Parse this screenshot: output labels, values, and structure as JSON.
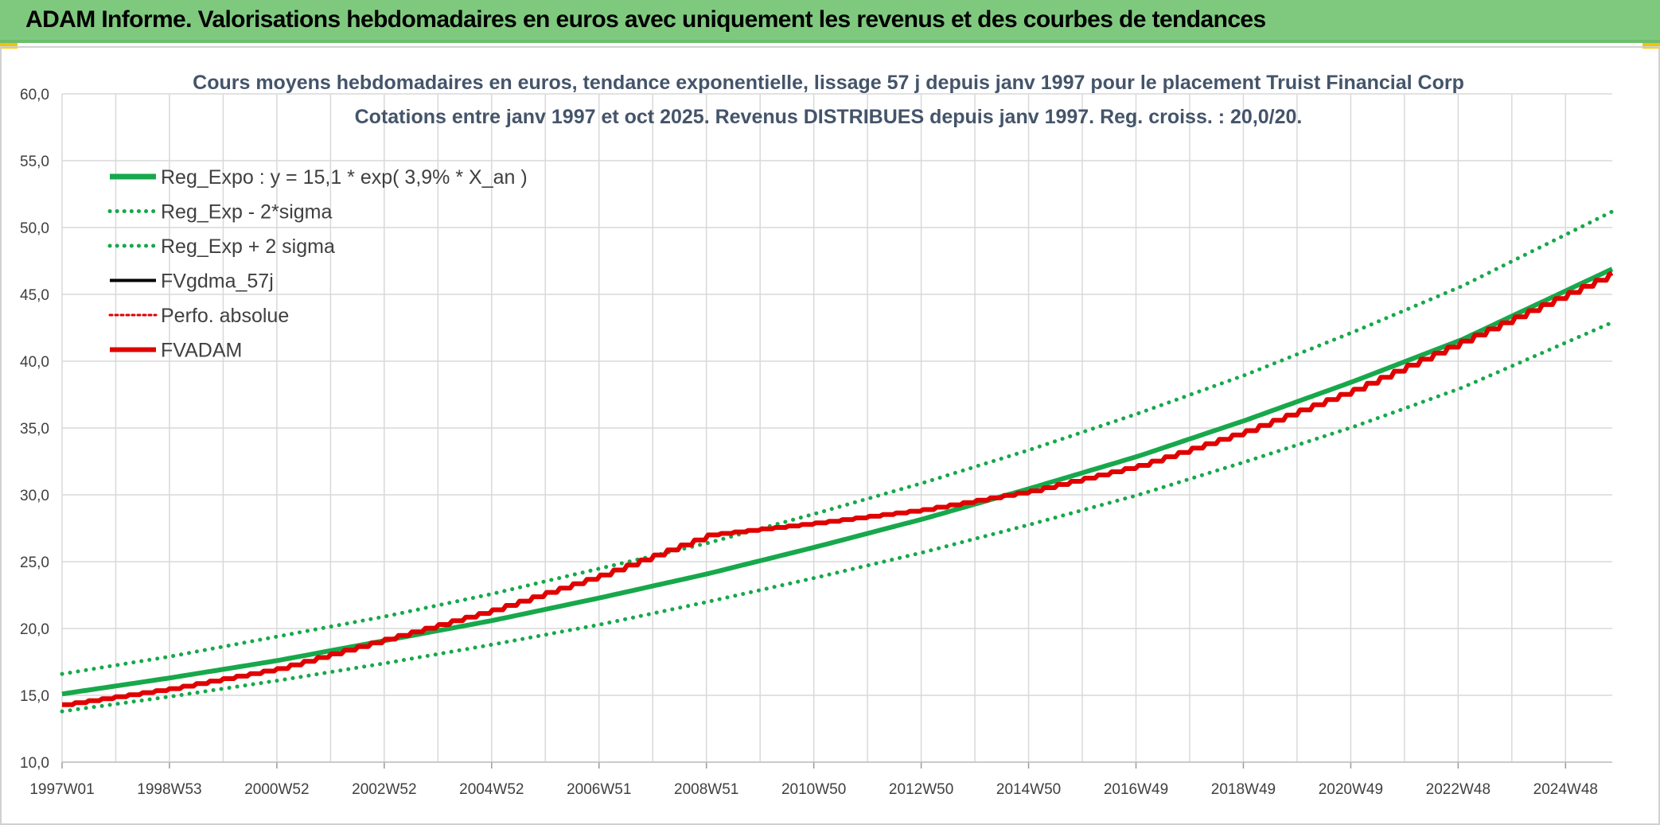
{
  "header": {
    "title": "ADAM Informe. Valorisations hebdomadaires en euros avec uniquement les revenus et des courbes de tendances"
  },
  "colors": {
    "reg_expo": "#17a84b",
    "sigma": "#17a84b",
    "fvgdma": "#000000",
    "perfo": "#e00000",
    "fvadam": "#e00000",
    "grid": "#d9d9d9"
  },
  "chart_data": {
    "type": "line",
    "title": "Cours moyens hebdomadaires en euros, tendance exponentielle, lissage 57 j depuis janv 1997 pour le placement Truist Financial Corp",
    "subtitle": "Cotations entre janv 1997 et oct 2025. Revenus DISTRIBUES depuis janv 1997. Reg. croiss. : 20,0/20.",
    "xlabel": "",
    "ylabel": "",
    "ylim": [
      10,
      60
    ],
    "xlim": [
      1997.0,
      2025.8
    ],
    "y_ticks": [
      "10,0",
      "15,0",
      "20,0",
      "25,0",
      "30,0",
      "35,0",
      "40,0",
      "45,0",
      "50,0",
      "55,0",
      "60,0"
    ],
    "x_ticks": [
      "1997W01",
      "1998W53",
      "2000W52",
      "2002W52",
      "2004W52",
      "2006W51",
      "2008W51",
      "2010W50",
      "2012W50",
      "2014W50",
      "2016W49",
      "2018W49",
      "2020W49",
      "2022W48",
      "2024W48"
    ],
    "legend": [
      {
        "label": "Reg_Expo : y = 15,1 * exp( 3,9% *  X_an )",
        "style": "solid",
        "color": "#17a84b"
      },
      {
        "label": "Reg_Exp - 2*sigma",
        "style": "dotted",
        "color": "#17a84b"
      },
      {
        "label": "Reg_Exp + 2 sigma",
        "style": "dotted",
        "color": "#17a84b"
      },
      {
        "label": "FVgdma_57j",
        "style": "solid",
        "color": "#000000"
      },
      {
        "label": "Perfo. absolue",
        "style": "dotted",
        "color": "#e00000"
      },
      {
        "label": "FVADAM",
        "style": "solid",
        "color": "#e00000"
      }
    ],
    "series": [
      {
        "name": "Reg_Expo",
        "x": [
          1997,
          1999,
          2001,
          2003,
          2005,
          2007,
          2009,
          2011,
          2013,
          2015,
          2017,
          2019,
          2021,
          2023,
          2025.8
        ],
        "values": [
          15.1,
          16.3,
          17.6,
          19.1,
          20.6,
          22.3,
          24.1,
          26.1,
          28.2,
          30.5,
          32.9,
          35.6,
          38.5,
          41.6,
          46.9
        ]
      },
      {
        "name": "Reg_Exp - 2*sigma",
        "x": [
          1997,
          1999,
          2001,
          2003,
          2005,
          2007,
          2009,
          2011,
          2013,
          2015,
          2017,
          2019,
          2021,
          2023,
          2025.8
        ],
        "values": [
          13.8,
          14.9,
          16.1,
          17.4,
          18.8,
          20.3,
          22.0,
          23.8,
          25.7,
          27.8,
          30.0,
          32.5,
          35.1,
          38.0,
          42.9
        ]
      },
      {
        "name": "Reg_Exp + 2 sigma",
        "x": [
          1997,
          1999,
          2001,
          2003,
          2005,
          2007,
          2009,
          2011,
          2013,
          2015,
          2017,
          2019,
          2021,
          2023,
          2025.8
        ],
        "values": [
          16.6,
          17.9,
          19.4,
          20.9,
          22.6,
          24.5,
          26.4,
          28.6,
          30.9,
          33.4,
          36.1,
          39.0,
          42.2,
          45.6,
          51.2
        ]
      },
      {
        "name": "FVADAM",
        "x": [
          1997,
          1999,
          2001,
          2003,
          2005,
          2007,
          2008,
          2009,
          2011,
          2013,
          2015,
          2017,
          2019,
          2021,
          2023,
          2025.8
        ],
        "values": [
          14.3,
          15.5,
          17.0,
          19.2,
          21.4,
          24.0,
          25.5,
          27.0,
          27.9,
          28.9,
          30.3,
          32.2,
          34.8,
          37.9,
          41.5,
          46.6
        ]
      }
    ]
  }
}
